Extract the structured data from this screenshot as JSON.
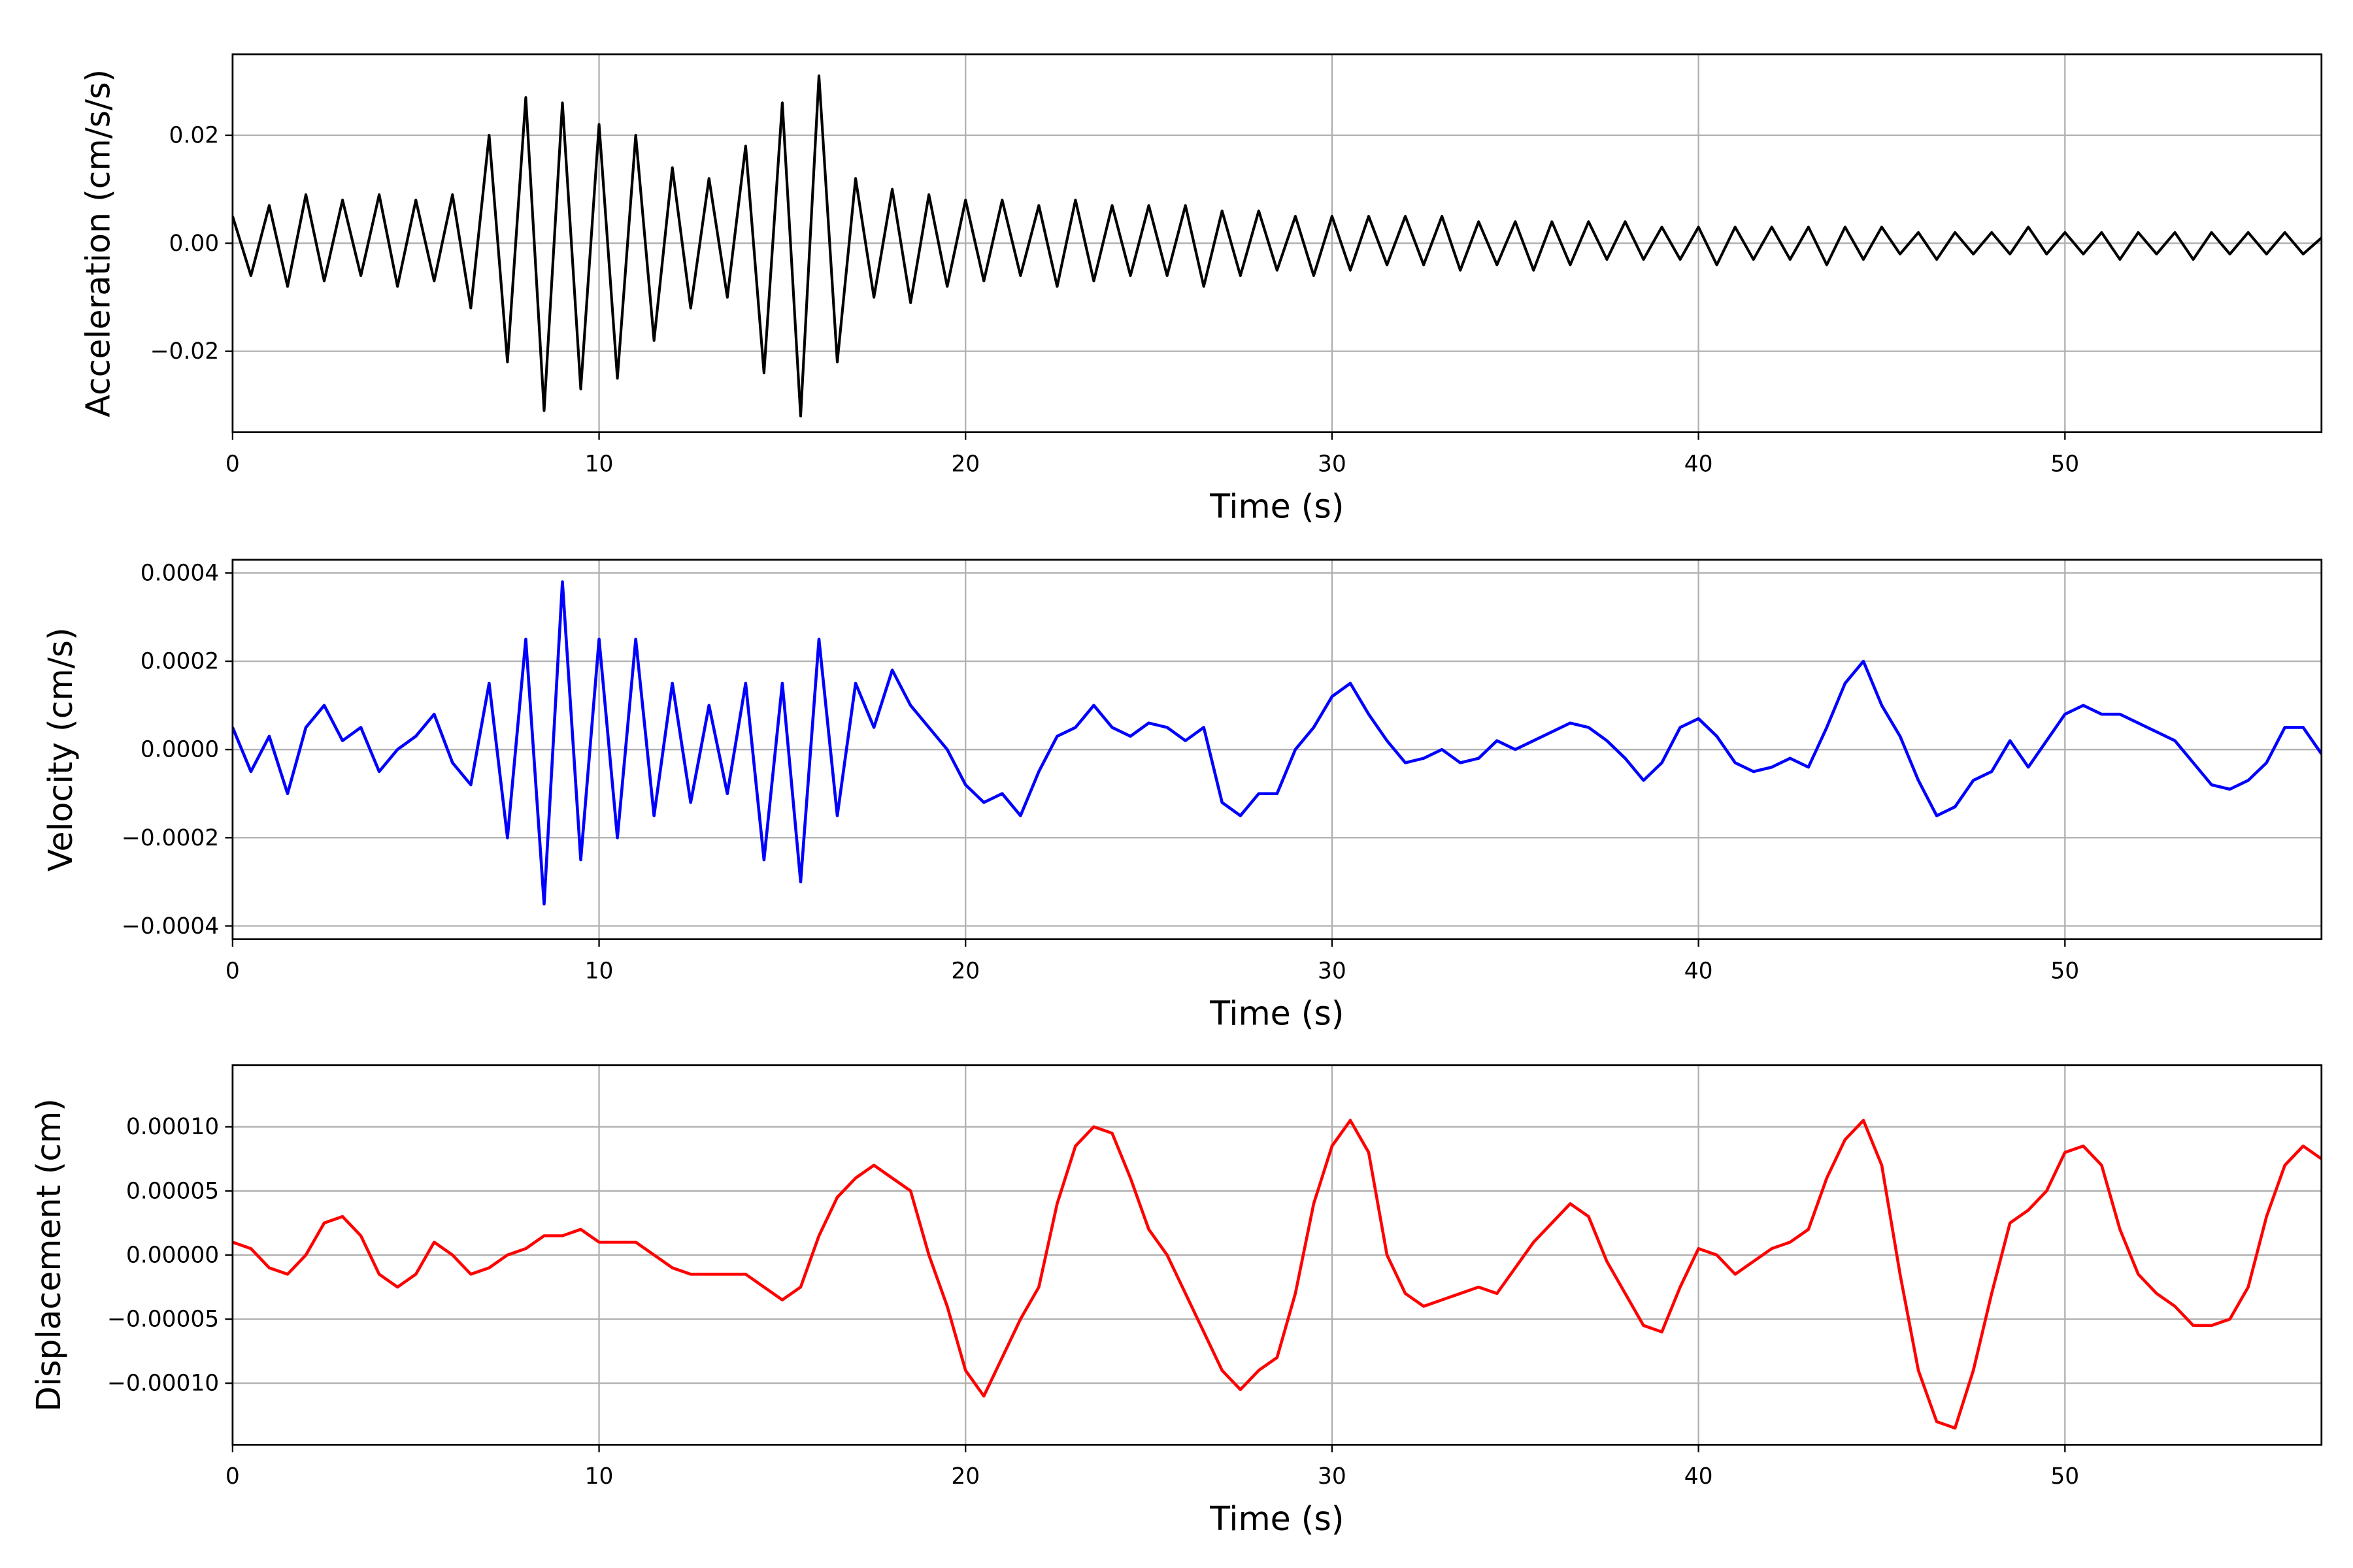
{
  "chart_data": [
    {
      "type": "line",
      "xlabel": "Time (s)",
      "ylabel": "Acceleration (cm/s/s)",
      "color": "#000000",
      "grid": true,
      "xlim": [
        0,
        57
      ],
      "ylim": [
        -0.035,
        0.035
      ],
      "xticks": [
        0,
        10,
        20,
        30,
        40,
        50
      ],
      "yticks": [
        {
          "value": -0.02,
          "label": "−0.02"
        },
        {
          "value": 0,
          "label": "0.00"
        },
        {
          "value": 0.02,
          "label": "0.02"
        }
      ],
      "x": [
        0,
        0.5,
        1,
        1.5,
        2,
        2.5,
        3,
        3.5,
        4,
        4.5,
        5,
        5.5,
        6,
        6.5,
        7,
        7.5,
        8,
        8.5,
        9,
        9.5,
        10,
        10.5,
        11,
        11.5,
        12,
        12.5,
        13,
        13.5,
        14,
        14.5,
        15,
        15.5,
        16,
        16.5,
        17,
        17.5,
        18,
        18.5,
        19,
        19.5,
        20,
        20.5,
        21,
        21.5,
        22,
        22.5,
        23,
        23.5,
        24,
        24.5,
        25,
        25.5,
        26,
        26.5,
        27,
        27.5,
        28,
        28.5,
        29,
        29.5,
        30,
        30.5,
        31,
        31.5,
        32,
        32.5,
        33,
        33.5,
        34,
        34.5,
        35,
        35.5,
        36,
        36.5,
        37,
        37.5,
        38,
        38.5,
        39,
        39.5,
        40,
        40.5,
        41,
        41.5,
        42,
        42.5,
        43,
        43.5,
        44,
        44.5,
        45,
        45.5,
        46,
        46.5,
        47,
        47.5,
        48,
        48.5,
        49,
        49.5,
        50,
        50.5,
        51,
        51.5,
        52,
        52.5,
        53,
        53.5,
        54,
        54.5,
        55,
        55.5,
        56,
        56.5,
        57
      ],
      "values": [
        0.005,
        -0.006,
        0.007,
        -0.008,
        0.009,
        -0.007,
        0.008,
        -0.006,
        0.009,
        -0.008,
        0.008,
        -0.007,
        0.009,
        -0.012,
        0.02,
        -0.022,
        0.027,
        -0.031,
        0.026,
        -0.027,
        0.022,
        -0.025,
        0.02,
        -0.018,
        0.014,
        -0.012,
        0.012,
        -0.01,
        0.018,
        -0.024,
        0.026,
        -0.032,
        0.031,
        -0.022,
        0.012,
        -0.01,
        0.01,
        -0.011,
        0.009,
        -0.008,
        0.008,
        -0.007,
        0.008,
        -0.006,
        0.007,
        -0.008,
        0.008,
        -0.007,
        0.007,
        -0.006,
        0.007,
        -0.006,
        0.007,
        -0.008,
        0.006,
        -0.006,
        0.006,
        -0.005,
        0.005,
        -0.006,
        0.005,
        -0.005,
        0.005,
        -0.004,
        0.005,
        -0.004,
        0.005,
        -0.005,
        0.004,
        -0.004,
        0.004,
        -0.005,
        0.004,
        -0.004,
        0.004,
        -0.003,
        0.004,
        -0.003,
        0.003,
        -0.003,
        0.003,
        -0.004,
        0.003,
        -0.003,
        0.003,
        -0.003,
        0.003,
        -0.004,
        0.003,
        -0.003,
        0.003,
        -0.002,
        0.002,
        -0.003,
        0.002,
        -0.002,
        0.002,
        -0.002,
        0.003,
        -0.002,
        0.002,
        -0.002,
        0.002,
        -0.003,
        0.002,
        -0.002,
        0.002,
        -0.003,
        0.002,
        -0.002,
        0.002,
        -0.002,
        0.002,
        -0.002,
        0.001
      ]
    },
    {
      "type": "line",
      "xlabel": "Time (s)",
      "ylabel": "Velocity (cm/s)",
      "color": "#0000ff",
      "grid": true,
      "xlim": [
        0,
        57
      ],
      "ylim": [
        -0.00043,
        0.00043
      ],
      "xticks": [
        0,
        10,
        20,
        30,
        40,
        50
      ],
      "yticks": [
        {
          "value": -0.0004,
          "label": "−0.0004"
        },
        {
          "value": -0.0002,
          "label": "−0.0002"
        },
        {
          "value": 0,
          "label": "0.0000"
        },
        {
          "value": 0.0002,
          "label": "0.0002"
        },
        {
          "value": 0.0004,
          "label": "0.0004"
        }
      ],
      "x": [
        0,
        0.5,
        1,
        1.5,
        2,
        2.5,
        3,
        3.5,
        4,
        4.5,
        5,
        5.5,
        6,
        6.5,
        7,
        7.5,
        8,
        8.5,
        9,
        9.5,
        10,
        10.5,
        11,
        11.5,
        12,
        12.5,
        13,
        13.5,
        14,
        14.5,
        15,
        15.5,
        16,
        16.5,
        17,
        17.5,
        18,
        18.5,
        19,
        19.5,
        20,
        20.5,
        21,
        21.5,
        22,
        22.5,
        23,
        23.5,
        24,
        24.5,
        25,
        25.5,
        26,
        26.5,
        27,
        27.5,
        28,
        28.5,
        29,
        29.5,
        30,
        30.5,
        31,
        31.5,
        32,
        32.5,
        33,
        33.5,
        34,
        34.5,
        35,
        35.5,
        36,
        36.5,
        37,
        37.5,
        38,
        38.5,
        39,
        39.5,
        40,
        40.5,
        41,
        41.5,
        42,
        42.5,
        43,
        43.5,
        44,
        44.5,
        45,
        45.5,
        46,
        46.5,
        47,
        47.5,
        48,
        48.5,
        49,
        49.5,
        50,
        50.5,
        51,
        51.5,
        52,
        52.5,
        53,
        53.5,
        54,
        54.5,
        55,
        55.5,
        56,
        56.5,
        57
      ],
      "values": [
        5e-05,
        -5e-05,
        3e-05,
        -0.0001,
        5e-05,
        0.0001,
        2e-05,
        5e-05,
        -5e-05,
        0,
        3e-05,
        8e-05,
        -3e-05,
        -8e-05,
        0.00015,
        -0.0002,
        0.00025,
        -0.00035,
        0.00038,
        -0.00025,
        0.00025,
        -0.0002,
        0.00025,
        -0.00015,
        0.00015,
        -0.00012,
        0.0001,
        -0.0001,
        0.00015,
        -0.00025,
        0.00015,
        -0.0003,
        0.00025,
        -0.00015,
        0.00015,
        5e-05,
        0.00018,
        0.0001,
        5e-05,
        0,
        -8e-05,
        -0.00012,
        -0.0001,
        -0.00015,
        -5e-05,
        3e-05,
        5e-05,
        0.0001,
        5e-05,
        3e-05,
        6e-05,
        5e-05,
        2e-05,
        5e-05,
        -0.00012,
        -0.00015,
        -0.0001,
        -0.0001,
        0,
        5e-05,
        0.00012,
        0.00015,
        8e-05,
        2e-05,
        -3e-05,
        -2e-05,
        0,
        -3e-05,
        -2e-05,
        2e-05,
        0,
        2e-05,
        4e-05,
        6e-05,
        5e-05,
        2e-05,
        -2e-05,
        -7e-05,
        -3e-05,
        5e-05,
        7e-05,
        3e-05,
        -3e-05,
        -5e-05,
        -4e-05,
        -2e-05,
        -4e-05,
        5e-05,
        0.00015,
        0.0002,
        0.0001,
        3e-05,
        -7e-05,
        -0.00015,
        -0.00013,
        -7e-05,
        -5e-05,
        2e-05,
        -4e-05,
        2e-05,
        8e-05,
        0.0001,
        8e-05,
        8e-05,
        6e-05,
        4e-05,
        2e-05,
        -3e-05,
        -8e-05,
        -9e-05,
        -7e-05,
        -3e-05,
        5e-05,
        5e-05,
        -1e-05
      ]
    },
    {
      "type": "line",
      "xlabel": "Time (s)",
      "ylabel": "Displacement (cm)",
      "color": "#ff0000",
      "grid": true,
      "xlim": [
        0,
        57
      ],
      "ylim": [
        -0.000148,
        0.000148
      ],
      "xticks": [
        0,
        10,
        20,
        30,
        40,
        50
      ],
      "yticks": [
        {
          "value": -0.0001,
          "label": "−0.00010"
        },
        {
          "value": -5e-05,
          "label": "−0.00005"
        },
        {
          "value": 0,
          "label": "0.00000"
        },
        {
          "value": 5e-05,
          "label": "0.00005"
        },
        {
          "value": 0.0001,
          "label": "0.00010"
        }
      ],
      "x": [
        0,
        0.5,
        1,
        1.5,
        2,
        2.5,
        3,
        3.5,
        4,
        4.5,
        5,
        5.5,
        6,
        6.5,
        7,
        7.5,
        8,
        8.5,
        9,
        9.5,
        10,
        10.5,
        11,
        11.5,
        12,
        12.5,
        13,
        13.5,
        14,
        14.5,
        15,
        15.5,
        16,
        16.5,
        17,
        17.5,
        18,
        18.5,
        19,
        19.5,
        20,
        20.5,
        21,
        21.5,
        22,
        22.5,
        23,
        23.5,
        24,
        24.5,
        25,
        25.5,
        26,
        26.5,
        27,
        27.5,
        28,
        28.5,
        29,
        29.5,
        30,
        30.5,
        31,
        31.5,
        32,
        32.5,
        33,
        33.5,
        34,
        34.5,
        35,
        35.5,
        36,
        36.5,
        37,
        37.5,
        38,
        38.5,
        39,
        39.5,
        40,
        40.5,
        41,
        41.5,
        42,
        42.5,
        43,
        43.5,
        44,
        44.5,
        45,
        45.5,
        46,
        46.5,
        47,
        47.5,
        48,
        48.5,
        49,
        49.5,
        50,
        50.5,
        51,
        51.5,
        52,
        52.5,
        53,
        53.5,
        54,
        54.5,
        55,
        55.5,
        56,
        56.5,
        57
      ],
      "values": [
        1e-05,
        5e-06,
        -1e-05,
        -1.5e-05,
        0,
        2.5e-05,
        3e-05,
        1.5e-05,
        -1.5e-05,
        -2.5e-05,
        -1.5e-05,
        1e-05,
        0,
        -1.5e-05,
        -1e-05,
        0,
        5e-06,
        1.5e-05,
        1.5e-05,
        2e-05,
        1e-05,
        1e-05,
        1e-05,
        0,
        -1e-05,
        -1.5e-05,
        -1.5e-05,
        -1.5e-05,
        -1.5e-05,
        -2.5e-05,
        -3.5e-05,
        -2.5e-05,
        1.5e-05,
        4.5e-05,
        6e-05,
        7e-05,
        6e-05,
        5e-05,
        0,
        -4e-05,
        -9e-05,
        -0.00011,
        -8e-05,
        -5e-05,
        -2.5e-05,
        4e-05,
        8.5e-05,
        0.0001,
        9.5e-05,
        6e-05,
        2e-05,
        0,
        -3e-05,
        -6e-05,
        -9e-05,
        -0.000105,
        -9e-05,
        -8e-05,
        -3e-05,
        4e-05,
        8.5e-05,
        0.000105,
        8e-05,
        0,
        -3e-05,
        -4e-05,
        -3.5e-05,
        -3e-05,
        -2.5e-05,
        -3e-05,
        -1e-05,
        1e-05,
        2.5e-05,
        4e-05,
        3e-05,
        -5e-06,
        -3e-05,
        -5.5e-05,
        -6e-05,
        -2.5e-05,
        5e-06,
        0,
        -1.5e-05,
        -5e-06,
        5e-06,
        1e-05,
        2e-05,
        6e-05,
        9e-05,
        0.000105,
        7e-05,
        -1.5e-05,
        -9e-05,
        -0.00013,
        -0.000135,
        -9e-05,
        -3e-05,
        2.5e-05,
        3.5e-05,
        5e-05,
        8e-05,
        8.5e-05,
        7e-05,
        2e-05,
        -1.5e-05,
        -3e-05,
        -4e-05,
        -5.5e-05,
        -5.5e-05,
        -5e-05,
        -2.5e-05,
        3e-05,
        7e-05,
        8.5e-05,
        7.5e-05
      ]
    }
  ]
}
